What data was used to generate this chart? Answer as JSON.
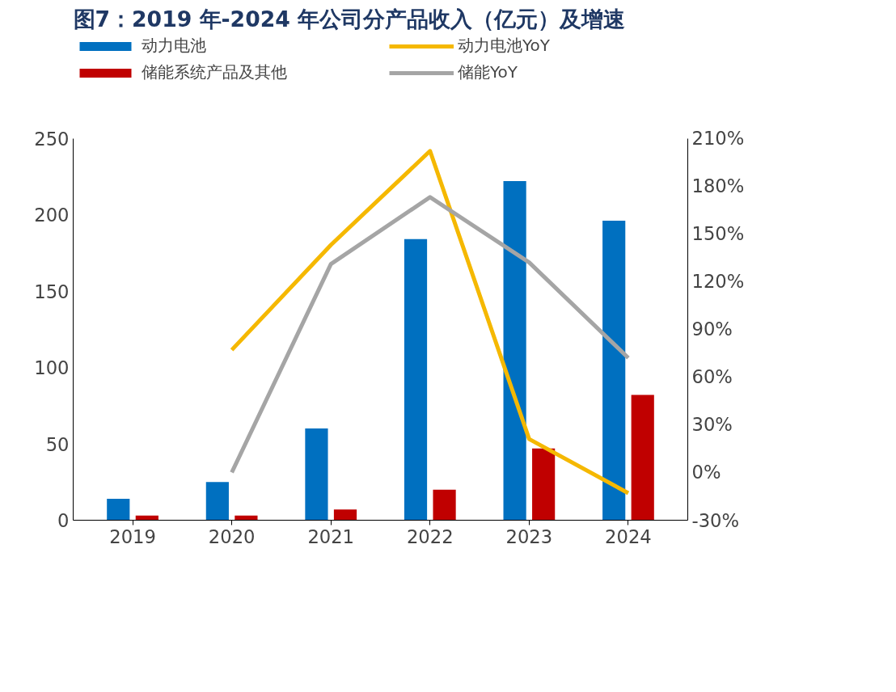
{
  "chart_data": {
    "type": "bar",
    "title": "图7：2019 年-2024 年公司分产品收入（亿元）及增速",
    "categories": [
      "2019",
      "2020",
      "2021",
      "2022",
      "2023",
      "2024"
    ],
    "series": [
      {
        "name": "动力电池",
        "color": "#0070c0",
        "values": [
          14,
          25,
          60,
          184,
          222,
          196
        ]
      },
      {
        "name": "储能系统产品及其他",
        "color": "#c00000",
        "values": [
          3,
          3,
          7,
          20,
          47,
          82
        ]
      },
      {
        "name": "动力电池YoY",
        "type": "line",
        "axis": "y2",
        "color": "#f5b800",
        "values": [
          null,
          77,
          143,
          202,
          21,
          -13
        ]
      },
      {
        "name": "储能YoY",
        "type": "line",
        "axis": "y2",
        "color": "#a5a5a5",
        "values": [
          null,
          0,
          131,
          173,
          132,
          72
        ]
      }
    ],
    "ylim": [
      0,
      250
    ],
    "yticks": [
      0,
      50,
      100,
      150,
      200,
      250
    ],
    "y2lim": [
      -30,
      210
    ],
    "y2ticks": [
      {
        "value": -30,
        "label": "-30%"
      },
      {
        "value": 0,
        "label": "0%"
      },
      {
        "value": 30,
        "label": "30%"
      },
      {
        "value": 60,
        "label": "60%"
      },
      {
        "value": 90,
        "label": "90%"
      },
      {
        "value": 120,
        "label": "120%"
      },
      {
        "value": 150,
        "label": "150%"
      },
      {
        "value": 180,
        "label": "180%"
      },
      {
        "value": 210,
        "label": "210%"
      }
    ],
    "grid": false,
    "legend": "top",
    "line_style": "solid",
    "marker": "none"
  }
}
